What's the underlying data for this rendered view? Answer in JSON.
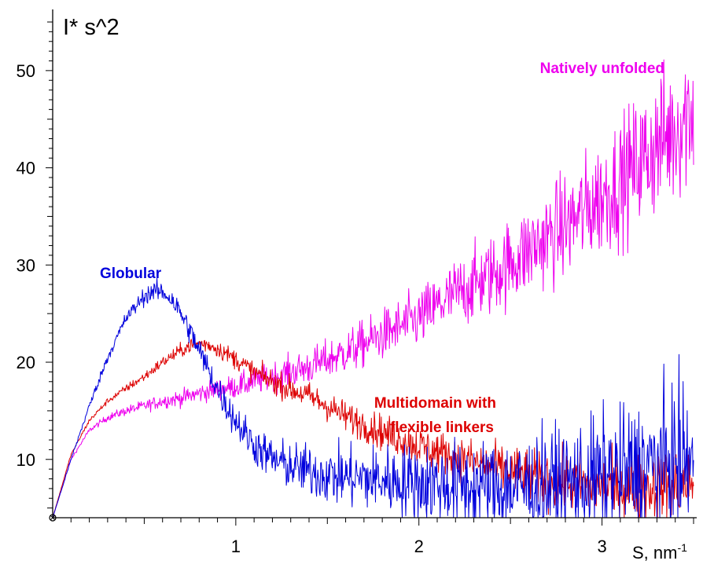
{
  "chart_data": {
    "type": "line",
    "ylabel": "I* s^2",
    "xlabel": "S, nm",
    "xlabel_superscript": "-1",
    "xlim": [
      0.0,
      3.5
    ],
    "ylim": [
      4.0,
      55.0
    ],
    "x_ticks": [
      1,
      2,
      3
    ],
    "y_ticks": [
      10,
      20,
      30,
      40,
      50
    ],
    "grid": false,
    "legend": "inline labels next to curves",
    "series": [
      {
        "name": "Globular",
        "color": "#0000dd",
        "noise": [
          0.0,
          0.45,
          0.9,
          1.45,
          2.0,
          2.6,
          3.2,
          3.8
        ],
        "x": [
          0.0,
          0.1,
          0.2,
          0.3,
          0.4,
          0.5,
          0.55,
          0.6,
          0.65,
          0.7,
          0.75,
          0.8,
          0.85,
          0.9,
          0.95,
          1.0,
          1.05,
          1.1,
          1.2,
          1.3,
          1.4,
          1.5,
          1.6,
          1.8,
          2.0,
          2.2,
          2.4,
          2.6,
          2.8,
          3.0,
          3.2,
          3.4,
          3.5
        ],
        "y": [
          4.0,
          10.0,
          15.5,
          20.5,
          24.5,
          26.8,
          27.3,
          27.2,
          26.5,
          25.0,
          23.2,
          21.2,
          19.2,
          17.3,
          15.5,
          14.0,
          12.7,
          11.5,
          10.0,
          9.3,
          8.8,
          8.4,
          8.2,
          7.9,
          7.6,
          7.3,
          7.1,
          7.1,
          7.5,
          8.2,
          9.0,
          9.7,
          10.0
        ]
      },
      {
        "name": "Multidomain with flexible linkers",
        "color": "#dd0000",
        "noise": [
          0.0,
          0.25,
          0.5,
          0.75,
          1.0,
          1.3,
          1.6,
          1.9
        ],
        "x": [
          0.0,
          0.1,
          0.2,
          0.3,
          0.4,
          0.5,
          0.6,
          0.7,
          0.75,
          0.8,
          0.85,
          0.9,
          1.0,
          1.1,
          1.2,
          1.3,
          1.4,
          1.5,
          1.6,
          1.8,
          2.0,
          2.2,
          2.4,
          2.6,
          2.8,
          3.0,
          3.2,
          3.4,
          3.5
        ],
        "y": [
          4.0,
          10.5,
          14.0,
          16.0,
          17.3,
          18.5,
          20.0,
          21.2,
          21.7,
          21.9,
          21.8,
          21.4,
          20.3,
          19.0,
          18.0,
          17.2,
          16.5,
          15.5,
          14.4,
          12.8,
          11.4,
          10.2,
          9.2,
          8.3,
          7.6,
          7.1,
          7.0,
          7.4,
          7.8
        ]
      },
      {
        "name": "Natively unfolded",
        "color": "#ee00ee",
        "noise": [
          0.0,
          0.3,
          0.6,
          1.0,
          1.5,
          2.2,
          3.0,
          4.0
        ],
        "x": [
          0.0,
          0.1,
          0.2,
          0.3,
          0.4,
          0.5,
          0.6,
          0.7,
          0.8,
          0.9,
          1.0,
          1.2,
          1.4,
          1.6,
          1.8,
          2.0,
          2.2,
          2.4,
          2.6,
          2.8,
          3.0,
          3.2,
          3.4,
          3.5
        ],
        "y": [
          4.0,
          10.0,
          13.0,
          14.3,
          15.0,
          15.5,
          16.0,
          16.3,
          16.8,
          17.2,
          17.5,
          18.5,
          19.5,
          21.0,
          22.8,
          24.5,
          27.0,
          29.0,
          31.5,
          34.0,
          37.0,
          40.5,
          44.0,
          46.5
        ]
      }
    ],
    "annotations": [
      {
        "text": "Globular",
        "color": "#0000dd"
      },
      {
        "text": "Multidomain with",
        "color": "#dd0000"
      },
      {
        "text": "flexible linkers",
        "color": "#dd0000"
      },
      {
        "text": "Natively unfolded",
        "color": "#ee00ee"
      }
    ]
  }
}
